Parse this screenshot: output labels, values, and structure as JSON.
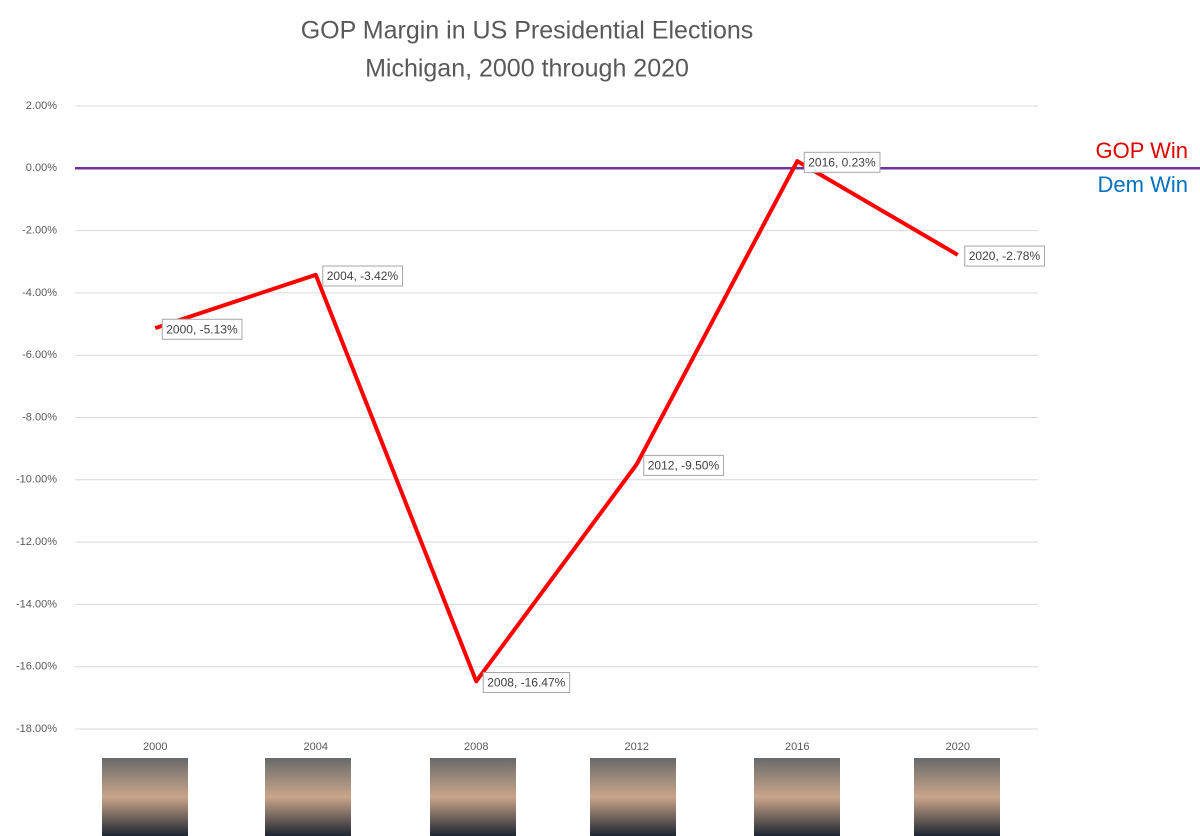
{
  "chart_data": {
    "type": "line",
    "title": "GOP Margin in US Presidential Elections",
    "subtitle": "Michigan, 2000 through 2020",
    "categories": [
      "2000",
      "2004",
      "2008",
      "2012",
      "2016",
      "2020"
    ],
    "values": [
      -5.13,
      -3.42,
      -16.47,
      -9.5,
      0.23,
      -2.78
    ],
    "value_labels": [
      "2000, -5.13%",
      "2004, -3.42%",
      "2008, -16.47%",
      "2012, -9.50%",
      "2016, 0.23%",
      "2020, -2.78%"
    ],
    "color": "#ff0000",
    "ylim": [
      -18,
      2
    ],
    "yticks": [
      {
        "value": 2,
        "label": "2.00%"
      },
      {
        "value": 0,
        "label": "0.00%"
      },
      {
        "value": -2,
        "label": "-2.00%"
      },
      {
        "value": -4,
        "label": "-4.00%"
      },
      {
        "value": -6,
        "label": "-6.00%"
      },
      {
        "value": -8,
        "label": "-8.00%"
      },
      {
        "value": -10,
        "label": "-10.00%"
      },
      {
        "value": -12,
        "label": "-12.00%"
      },
      {
        "value": -14,
        "label": "-14.00%"
      },
      {
        "value": -16,
        "label": "-16.00%"
      },
      {
        "value": -18,
        "label": "-18.00%"
      }
    ],
    "grid": true,
    "zero_line_color": "#7030a0",
    "annotations": [
      {
        "text": "GOP Win",
        "color": "#e00000"
      },
      {
        "text": "Dem Win",
        "color": "#0070c0"
      }
    ]
  }
}
